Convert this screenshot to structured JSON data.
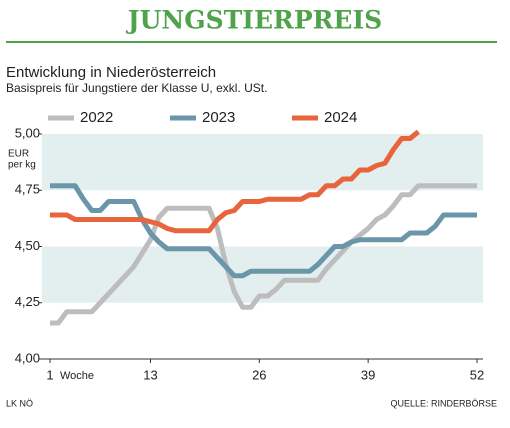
{
  "chart_data": {
    "type": "line",
    "title": "JUNGSTIERPREIS",
    "subtitle": "Entwicklung in Niederösterreich",
    "description": "Basispreis für Jungstiere der Klasse U, exkl. USt.",
    "y_label_lines": [
      "EUR",
      "per kg"
    ],
    "x_label": "Woche",
    "source_left": "LK NÖ",
    "source_right": "QUELLE: RINDERBÖRSE",
    "x": [
      1,
      2,
      3,
      4,
      5,
      6,
      7,
      8,
      9,
      10,
      11,
      12,
      13,
      14,
      15,
      16,
      17,
      18,
      19,
      20,
      21,
      22,
      23,
      24,
      25,
      26,
      27,
      28,
      29,
      30,
      31,
      32,
      33,
      34,
      35,
      36,
      37,
      38,
      39,
      40,
      41,
      42,
      43,
      44,
      45,
      46,
      47,
      48,
      49,
      50,
      51,
      52
    ],
    "xlim": [
      1,
      52
    ],
    "xticks": [
      1,
      13,
      26,
      39,
      52
    ],
    "ylim": [
      4,
      5
    ],
    "yticks": [
      {
        "value": 4,
        "label": "4,00"
      },
      {
        "value": 4.25,
        "label": "4,25"
      },
      {
        "value": 4.5,
        "label": "4,50"
      },
      {
        "value": 4.75,
        "label": "4,75"
      },
      {
        "value": 5,
        "label": "5,00"
      }
    ],
    "alternating_bands": true,
    "band_color": "#e2efee",
    "accent_color": "#4fa34a",
    "series": [
      {
        "name": "2022",
        "color": "#bdbdbd",
        "values": [
          4.16,
          4.16,
          4.21,
          4.21,
          4.21,
          4.21,
          4.25,
          4.29,
          4.33,
          4.37,
          4.41,
          4.47,
          4.53,
          4.63,
          4.67,
          4.67,
          4.67,
          4.67,
          4.67,
          4.67,
          4.58,
          4.42,
          4.3,
          4.23,
          4.23,
          4.28,
          4.28,
          4.31,
          4.35,
          4.35,
          4.35,
          4.35,
          4.35,
          4.4,
          4.44,
          4.48,
          4.52,
          4.55,
          4.58,
          4.62,
          4.64,
          4.68,
          4.73,
          4.73,
          4.77,
          4.77,
          4.77,
          4.77,
          4.77,
          4.77,
          4.77,
          4.77
        ]
      },
      {
        "name": "2023",
        "color": "#6b95a8",
        "values": [
          4.77,
          4.77,
          4.77,
          4.77,
          4.71,
          4.66,
          4.66,
          4.7,
          4.7,
          4.7,
          4.7,
          4.62,
          4.56,
          4.52,
          4.49,
          4.49,
          4.49,
          4.49,
          4.49,
          4.49,
          4.45,
          4.41,
          4.37,
          4.37,
          4.39,
          4.39,
          4.39,
          4.39,
          4.39,
          4.39,
          4.39,
          4.39,
          4.42,
          4.46,
          4.5,
          4.5,
          4.52,
          4.53,
          4.53,
          4.53,
          4.53,
          4.53,
          4.53,
          4.56,
          4.56,
          4.56,
          4.59,
          4.64,
          4.64,
          4.64,
          4.64,
          4.64
        ]
      },
      {
        "name": "2024",
        "color": "#e8643c",
        "values": [
          4.64,
          4.64,
          4.64,
          4.62,
          4.62,
          4.62,
          4.62,
          4.62,
          4.62,
          4.62,
          4.62,
          4.62,
          4.61,
          4.6,
          4.58,
          4.57,
          4.57,
          4.57,
          4.57,
          4.57,
          4.62,
          4.65,
          4.66,
          4.7,
          4.7,
          4.7,
          4.71,
          4.71,
          4.71,
          4.71,
          4.71,
          4.73,
          4.73,
          4.77,
          4.77,
          4.8,
          4.8,
          4.84,
          4.84,
          4.86,
          4.87,
          4.93,
          4.98,
          4.98,
          5.01,
          null,
          null,
          null,
          null,
          null,
          null,
          null
        ]
      }
    ]
  }
}
